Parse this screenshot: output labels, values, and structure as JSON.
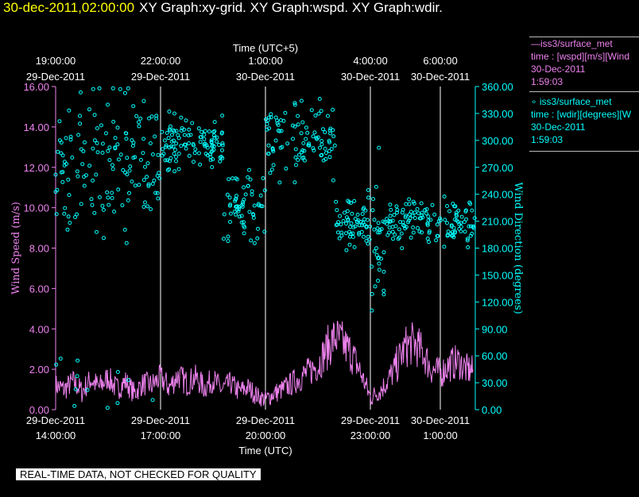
{
  "title": {
    "date": "30-dec-2011,02:00:00",
    "graphs": "XY Graph:xy-grid.  XY Graph:wspd.  XY Graph:wdir."
  },
  "colors": {
    "background": "#000000",
    "grid": "#ffffff",
    "wspd": "#ee82ee",
    "wdir": "#00ffff",
    "title_date": "#ffff00"
  },
  "legend": {
    "wspd": {
      "line1": "—iss3/surface_met",
      "line2": "time : [wspd][m/s][Wind",
      "line3": "30-Dec-2011",
      "line4": "1:59:03"
    },
    "wdir": {
      "line1": "∘ iss3/surface_met",
      "line2": "time : [wdir][degrees][W",
      "line3": "30-Dec-2011",
      "line4": "1:59:03"
    }
  },
  "qc_notice": "REAL-TIME DATA, NOT CHECKED FOR QUALITY",
  "chart_data": {
    "type": "scatter",
    "x_start_hour_label": "29-Dec-2011 14:00:00",
    "top_axis": {
      "title": "Time (UTC+5)",
      "ticks": [
        {
          "t": 0.0,
          "line1": "19:00:00",
          "line2": "29-Dec-2011"
        },
        {
          "t": 3.0,
          "line1": "22:00:00",
          "line2": "29-Dec-2011"
        },
        {
          "t": 6.0,
          "line1": "1:00:00",
          "line2": "30-Dec-2011"
        },
        {
          "t": 9.0,
          "line1": "4:00:00",
          "line2": "30-Dec-2011"
        },
        {
          "t": 11.0,
          "line1": "6:00:00",
          "line2": "30-Dec-2011"
        }
      ]
    },
    "bottom_axis": {
      "title": "Time (UTC)",
      "ticks": [
        {
          "t": 0.0,
          "line1": "29-Dec-2011",
          "line2": "14:00:00"
        },
        {
          "t": 3.0,
          "line1": "29-Dec-2011",
          "line2": "17:00:00"
        },
        {
          "t": 6.0,
          "line1": "29-Dec-2011",
          "line2": "20:00:00"
        },
        {
          "t": 9.0,
          "line1": "29-Dec-2011",
          "line2": "23:00:00"
        },
        {
          "t": 11.0,
          "line1": "30-Dec-2011",
          "line2": "1:00:00"
        }
      ]
    },
    "x_range_hours": [
      0,
      12.0
    ],
    "left_axis": {
      "label": "Wind Speed (m/s)",
      "range": [
        0,
        16
      ],
      "ticks": [
        "0.00",
        "2.00",
        "4.00",
        "6.00",
        "8.00",
        "10.00",
        "12.00",
        "14.00",
        "16.00"
      ]
    },
    "right_axis": {
      "label": "Wind Direction (degrees)",
      "range": [
        0,
        360
      ],
      "ticks": [
        "0.00",
        "30.00",
        "60.00",
        "90.00",
        "120.00",
        "150.00",
        "180.00",
        "210.00",
        "240.00",
        "270.00",
        "300.00",
        "330.00",
        "360.00"
      ]
    },
    "grid": "vertical",
    "series": [
      {
        "name": "iss3/surface_met [wspd][m/s]",
        "kind": "line",
        "points": [
          [
            0.0,
            1.2
          ],
          [
            0.25,
            1.0
          ],
          [
            0.5,
            1.4
          ],
          [
            0.75,
            0.9
          ],
          [
            1.0,
            1.5
          ],
          [
            1.25,
            1.1
          ],
          [
            1.5,
            1.6
          ],
          [
            1.75,
            1.0
          ],
          [
            2.0,
            1.4
          ],
          [
            2.25,
            0.8
          ],
          [
            2.5,
            1.3
          ],
          [
            2.75,
            1.2
          ],
          [
            3.0,
            1.6
          ],
          [
            3.25,
            1.1
          ],
          [
            3.5,
            1.7
          ],
          [
            3.75,
            1.3
          ],
          [
            4.0,
            1.6
          ],
          [
            4.25,
            1.1
          ],
          [
            4.5,
            1.5
          ],
          [
            4.75,
            1.0
          ],
          [
            5.0,
            1.3
          ],
          [
            5.25,
            0.9
          ],
          [
            5.5,
            1.1
          ],
          [
            5.75,
            0.7
          ],
          [
            6.0,
            0.5
          ],
          [
            6.25,
            0.8
          ],
          [
            6.5,
            1.0
          ],
          [
            6.75,
            1.3
          ],
          [
            7.0,
            1.6
          ],
          [
            7.25,
            1.9
          ],
          [
            7.5,
            2.2
          ],
          [
            7.75,
            3.0
          ],
          [
            8.0,
            3.6
          ],
          [
            8.25,
            3.2
          ],
          [
            8.5,
            2.7
          ],
          [
            8.75,
            1.7
          ],
          [
            9.0,
            0.6
          ],
          [
            9.25,
            0.9
          ],
          [
            9.5,
            1.4
          ],
          [
            9.75,
            2.2
          ],
          [
            10.0,
            3.1
          ],
          [
            10.25,
            3.3
          ],
          [
            10.5,
            2.8
          ],
          [
            10.75,
            2.0
          ],
          [
            11.0,
            1.8
          ],
          [
            11.25,
            2.2
          ],
          [
            11.5,
            2.4
          ],
          [
            11.75,
            2.0
          ],
          [
            11.95,
            1.9
          ]
        ]
      },
      {
        "name": "iss3/surface_met [wdir][degrees]",
        "kind": "scatter",
        "clusters": [
          {
            "t": [
              0.0,
              3.0
            ],
            "center": 275,
            "spread": 55,
            "n": 150
          },
          {
            "t": [
              0.0,
              3.0
            ],
            "center": 25,
            "spread": 20,
            "n": 12
          },
          {
            "t": [
              3.0,
              4.8
            ],
            "center": 295,
            "spread": 22,
            "n": 110
          },
          {
            "t": [
              4.8,
              6.0
            ],
            "center": 225,
            "spread": 28,
            "n": 65
          },
          {
            "t": [
              6.0,
              8.0
            ],
            "center": 300,
            "spread": 35,
            "n": 100
          },
          {
            "t": [
              8.0,
              9.0
            ],
            "center": 210,
            "spread": 22,
            "n": 65
          },
          {
            "t": [
              9.0,
              9.4
            ],
            "center": 185,
            "spread": 60,
            "n": 30
          },
          {
            "t": [
              9.4,
              12.0
            ],
            "center": 210,
            "spread": 18,
            "n": 140
          }
        ]
      }
    ]
  }
}
